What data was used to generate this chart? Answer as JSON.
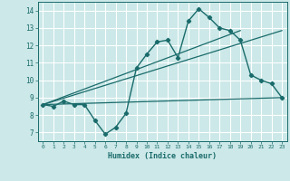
{
  "xlabel": "Humidex (Indice chaleur)",
  "bg_color": "#cce8e8",
  "grid_color": "#ffffff",
  "line_color": "#1a6b6b",
  "xlim": [
    -0.5,
    23.5
  ],
  "ylim": [
    6.5,
    14.5
  ],
  "xticks": [
    0,
    1,
    2,
    3,
    4,
    5,
    6,
    7,
    8,
    9,
    10,
    11,
    12,
    13,
    14,
    15,
    16,
    17,
    18,
    19,
    20,
    21,
    22,
    23
  ],
  "yticks": [
    7,
    8,
    9,
    10,
    11,
    12,
    13,
    14
  ],
  "curve_x": [
    0,
    1,
    2,
    3,
    4,
    5,
    6,
    7,
    8,
    9,
    10,
    11,
    12,
    13,
    14,
    15,
    16,
    17,
    18,
    19,
    20,
    21,
    22,
    23
  ],
  "curve_y": [
    8.6,
    8.5,
    8.8,
    8.6,
    8.6,
    7.7,
    6.9,
    7.3,
    8.1,
    10.7,
    11.5,
    12.2,
    12.3,
    11.3,
    13.4,
    14.1,
    13.6,
    13.0,
    12.85,
    12.3,
    10.3,
    10.0,
    9.8,
    9.0
  ],
  "line1_x": [
    0,
    23
  ],
  "line1_y": [
    8.6,
    9.0
  ],
  "line2_x": [
    0,
    19
  ],
  "line2_y": [
    8.6,
    12.85
  ],
  "line3_x": [
    0,
    23
  ],
  "line3_y": [
    8.6,
    12.85
  ]
}
